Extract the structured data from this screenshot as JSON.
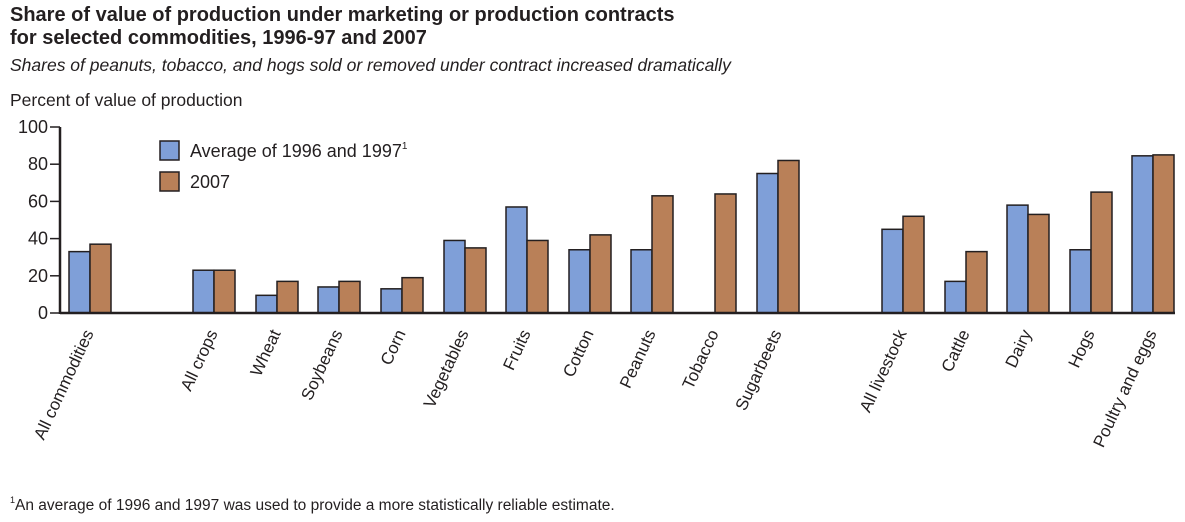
{
  "title_line1": "Share of value of production under marketing or production contracts",
  "title_line2": "for selected commodities, 1996-97 and 2007",
  "subtitle": "Shares of peanuts, tobacco, and hogs sold or removed under contract increased dramatically",
  "footnote": "An average of 1996 and 1997 was used to provide a more statistically reliable estimate.",
  "footnote_marker": "1",
  "chart_data": {
    "type": "bar",
    "ylabel": "Percent of value of production",
    "ylim": [
      0,
      100
    ],
    "yticks": [
      0,
      20,
      40,
      60,
      80,
      100
    ],
    "legend_placement": "top-left",
    "categories": [
      "All commodities",
      "All crops",
      "Wheat",
      "Soybeans",
      "Corn",
      "Vegetables",
      "Fruits",
      "Cotton",
      "Peanuts",
      "Tobacco",
      "Sugarbeets",
      "All livestock",
      "Cattle",
      "Dairy",
      "Hogs",
      "Poultry and eggs"
    ],
    "series": [
      {
        "name": "Average of 1996 and 1997",
        "name_superscript": "1",
        "color": "#7f9fd8",
        "values": [
          33,
          23,
          9.5,
          14,
          13,
          39,
          57,
          34,
          34,
          0,
          75,
          45,
          17,
          58,
          34,
          84.5
        ]
      },
      {
        "name": "2007",
        "color": "#b98058",
        "values": [
          37,
          23,
          17,
          17,
          19,
          35,
          39,
          42,
          63,
          64,
          82,
          52,
          33,
          53,
          65,
          85
        ]
      }
    ]
  }
}
